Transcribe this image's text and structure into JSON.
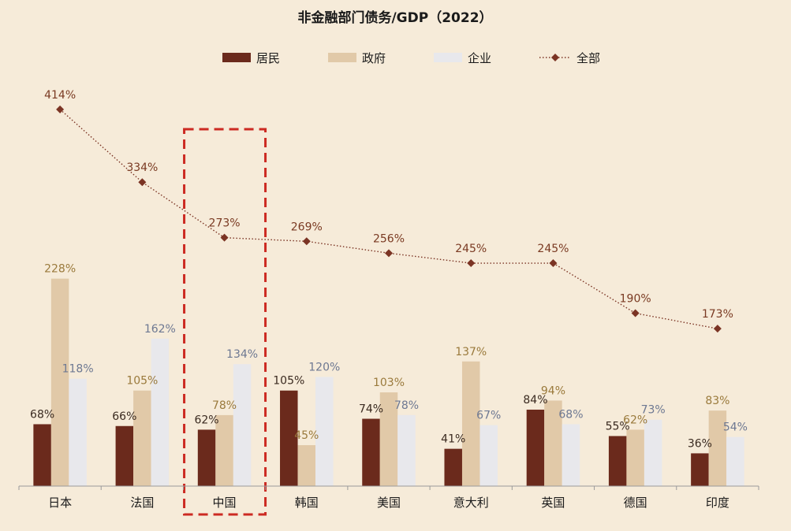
{
  "colors": {
    "background": "#f6ebd9",
    "household": "#6b2a1c",
    "government": "#e1c9a8",
    "corporate": "#e8e8ec",
    "total": "#7b3424",
    "highlight": "#cc2a22"
  },
  "chart_data": {
    "type": "bar",
    "title": "非金融部门债务/GDP（2022）",
    "categories": [
      "日本",
      "法国",
      "中国",
      "韩国",
      "美国",
      "意大利",
      "英国",
      "德国",
      "印度"
    ],
    "series": [
      {
        "name": "居民",
        "kind": "bar",
        "values": [
          68,
          66,
          62,
          105,
          74,
          41,
          84,
          55,
          36
        ],
        "labels": [
          "68%",
          "66%",
          "62%",
          "105%",
          "74%",
          "41%",
          "84%",
          "55%",
          "36%"
        ]
      },
      {
        "name": "政府",
        "kind": "bar",
        "values": [
          228,
          105,
          78,
          45,
          103,
          137,
          94,
          62,
          83
        ],
        "labels": [
          "228%",
          "105%",
          "78%",
          "45%",
          "103%",
          "137%",
          "94%",
          "62%",
          "83%"
        ]
      },
      {
        "name": "企业",
        "kind": "bar",
        "values": [
          118,
          162,
          134,
          120,
          78,
          67,
          68,
          73,
          54
        ],
        "labels": [
          "118%",
          "162%",
          "134%",
          "120%",
          "78%",
          "67%",
          "68%",
          "73%",
          "54%"
        ]
      },
      {
        "name": "全部",
        "kind": "line",
        "values": [
          414,
          334,
          273,
          269,
          256,
          245,
          245,
          190,
          173
        ],
        "labels": [
          "414%",
          "334%",
          "273%",
          "269%",
          "256%",
          "245%",
          "245%",
          "190%",
          "173%"
        ]
      }
    ],
    "ylim": [
      0,
      420
    ],
    "grid": false,
    "legend": "top-center",
    "highlight_category": "中国"
  }
}
